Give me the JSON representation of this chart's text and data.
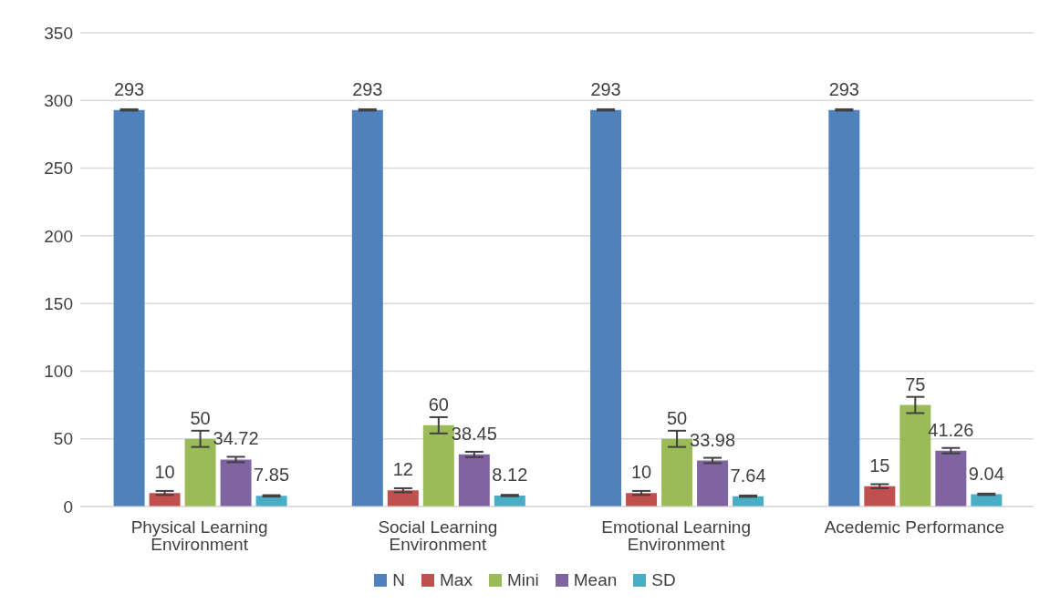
{
  "chart_data": {
    "type": "bar",
    "categories": [
      "Physical Learning Environment",
      "Social Learning Environment",
      "Emotional Learning Environment",
      "Acedemic Performance"
    ],
    "series": [
      {
        "name": "N",
        "color": "#4f81bd",
        "values": [
          293,
          293,
          293,
          293
        ],
        "errors": [
          0.5,
          0.5,
          0.5,
          0.5
        ]
      },
      {
        "name": "Max",
        "color": "#c0504d",
        "values": [
          10,
          12,
          10,
          15
        ],
        "errors": [
          1.5,
          1.5,
          1.5,
          1.5
        ]
      },
      {
        "name": "Mini",
        "color": "#9bbb59",
        "values": [
          50,
          60,
          50,
          75
        ],
        "errors": [
          6,
          6,
          6,
          6
        ]
      },
      {
        "name": "Mean",
        "color": "#8064a2",
        "values": [
          34.72,
          38.45,
          33.98,
          41.26
        ],
        "errors": [
          2,
          2,
          2,
          2
        ]
      },
      {
        "name": "SD",
        "color": "#4bacc6",
        "values": [
          7.85,
          8.12,
          7.64,
          9.04
        ],
        "errors": [
          0.5,
          0.5,
          0.5,
          0.5
        ]
      }
    ],
    "ylim": [
      0,
      350
    ],
    "yticks": [
      0,
      50,
      100,
      150,
      200,
      250,
      300,
      350
    ],
    "grid": "y",
    "legend": "bottom",
    "data_labels": true
  }
}
